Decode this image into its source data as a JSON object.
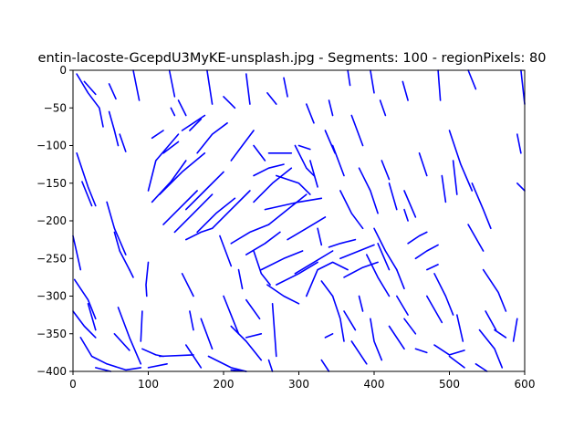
{
  "chart_data": {
    "type": "line",
    "title": "entin-lacoste-GcepdU3MyKE-unsplash.jpg - Segments: 100 - regionPixels: 80",
    "xlim": [
      0,
      600
    ],
    "ylim": [
      -400,
      0
    ],
    "xticks": [
      0,
      100,
      200,
      300,
      400,
      500,
      600
    ],
    "yticks": [
      0,
      -50,
      -100,
      -150,
      -200,
      -250,
      -300,
      -350,
      -400
    ],
    "grid": false,
    "legend": "none",
    "color": "#0000ff",
    "segments": [
      [
        [
          5,
          5
        ],
        [
          20,
          30
        ],
        [
          35,
          50
        ],
        [
          40,
          75
        ]
      ],
      [
        [
          15,
          15
        ],
        [
          30,
          32
        ]
      ],
      [
        [
          48,
          18
        ],
        [
          57,
          38
        ]
      ],
      [
        [
          48,
          55
        ],
        [
          55,
          80
        ],
        [
          60,
          100
        ]
      ],
      [
        [
          80,
          0
        ],
        [
          88,
          40
        ]
      ],
      [
        [
          62,
          85
        ],
        [
          70,
          108
        ]
      ],
      [
        [
          5,
          110
        ],
        [
          20,
          155
        ],
        [
          30,
          180
        ]
      ],
      [
        [
          12,
          148
        ],
        [
          25,
          180
        ]
      ],
      [
        [
          45,
          175
        ],
        [
          55,
          210
        ],
        [
          70,
          245
        ]
      ],
      [
        [
          55,
          215
        ],
        [
          62,
          240
        ],
        [
          75,
          265
        ]
      ],
      [
        [
          0,
          220
        ],
        [
          10,
          265
        ]
      ],
      [
        [
          2,
          278
        ],
        [
          20,
          305
        ],
        [
          30,
          330
        ]
      ],
      [
        [
          20,
          310
        ],
        [
          30,
          345
        ]
      ],
      [
        [
          0,
          320
        ],
        [
          15,
          340
        ],
        [
          30,
          355
        ]
      ],
      [
        [
          10,
          355
        ],
        [
          25,
          380
        ],
        [
          45,
          390
        ]
      ],
      [
        [
          55,
          350
        ],
        [
          75,
          372
        ]
      ],
      [
        [
          60,
          315
        ],
        [
          75,
          355
        ],
        [
          90,
          390
        ]
      ],
      [
        [
          45,
          390
        ],
        [
          70,
          398
        ],
        [
          90,
          395
        ]
      ],
      [
        [
          30,
          395
        ],
        [
          50,
          400
        ]
      ],
      [
        [
          75,
          265
        ],
        [
          80,
          275
        ]
      ],
      [
        [
          100,
          255
        ],
        [
          97,
          285
        ],
        [
          98,
          300
        ]
      ],
      [
        [
          92,
          320
        ],
        [
          90,
          360
        ]
      ],
      [
        [
          92,
          370
        ],
        [
          110,
          378
        ],
        [
          120,
          380
        ]
      ],
      [
        [
          100,
          395
        ],
        [
          125,
          390
        ]
      ],
      [
        [
          115,
          380
        ],
        [
          160,
          378
        ]
      ],
      [
        [
          150,
          365
        ],
        [
          170,
          395
        ]
      ],
      [
        [
          170,
          330
        ],
        [
          185,
          370
        ]
      ],
      [
        [
          145,
          270
        ],
        [
          160,
          300
        ]
      ],
      [
        [
          155,
          320
        ],
        [
          160,
          345
        ]
      ],
      [
        [
          200,
          300
        ],
        [
          212,
          330
        ],
        [
          220,
          350
        ]
      ],
      [
        [
          210,
          340
        ],
        [
          230,
          360
        ],
        [
          250,
          385
        ]
      ],
      [
        [
          180,
          380
        ],
        [
          210,
          395
        ],
        [
          230,
          400
        ]
      ],
      [
        [
          210,
          398
        ],
        [
          230,
          400
        ]
      ],
      [
        [
          230,
          355
        ],
        [
          250,
          350
        ]
      ],
      [
        [
          230,
          305
        ],
        [
          248,
          330
        ]
      ],
      [
        [
          265,
          310
        ],
        [
          270,
          380
        ]
      ],
      [
        [
          260,
          385
        ],
        [
          265,
          400
        ]
      ],
      [
        [
          195,
          220
        ],
        [
          210,
          260
        ]
      ],
      [
        [
          220,
          265
        ],
        [
          225,
          290
        ]
      ],
      [
        [
          240,
          240
        ],
        [
          250,
          270
        ],
        [
          262,
          285
        ]
      ],
      [
        [
          258,
          285
        ],
        [
          280,
          300
        ],
        [
          300,
          310
        ]
      ],
      [
        [
          120,
          205
        ],
        [
          140,
          185
        ],
        [
          165,
          160
        ]
      ],
      [
        [
          150,
          185
        ],
        [
          175,
          160
        ],
        [
          200,
          135
        ]
      ],
      [
        [
          105,
          175
        ],
        [
          130,
          148
        ],
        [
          150,
          120
        ]
      ],
      [
        [
          115,
          165
        ],
        [
          145,
          135
        ],
        [
          175,
          110
        ]
      ],
      [
        [
          135,
          215
        ],
        [
          160,
          190
        ],
        [
          185,
          165
        ]
      ],
      [
        [
          165,
          215
        ],
        [
          190,
          190
        ],
        [
          215,
          170
        ]
      ],
      [
        [
          185,
          210
        ],
        [
          210,
          185
        ],
        [
          235,
          160
        ]
      ],
      [
        [
          150,
          225
        ],
        [
          170,
          215
        ],
        [
          185,
          210
        ]
      ],
      [
        [
          120,
          110
        ],
        [
          140,
          95
        ]
      ],
      [
        [
          100,
          160
        ],
        [
          110,
          120
        ],
        [
          140,
          85
        ]
      ],
      [
        [
          145,
          80
        ],
        [
          160,
          70
        ],
        [
          175,
          60
        ]
      ],
      [
        [
          105,
          90
        ],
        [
          120,
          80
        ]
      ],
      [
        [
          165,
          110
        ],
        [
          185,
          85
        ],
        [
          205,
          70
        ]
      ],
      [
        [
          210,
          120
        ],
        [
          225,
          100
        ],
        [
          240,
          80
        ]
      ],
      [
        [
          240,
          140
        ],
        [
          260,
          130
        ],
        [
          280,
          125
        ]
      ],
      [
        [
          240,
          175
        ],
        [
          265,
          150
        ],
        [
          290,
          130
        ]
      ],
      [
        [
          260,
          205
        ],
        [
          285,
          185
        ],
        [
          310,
          165
        ]
      ],
      [
        [
          210,
          230
        ],
        [
          235,
          215
        ],
        [
          260,
          205
        ]
      ],
      [
        [
          230,
          245
        ],
        [
          255,
          230
        ],
        [
          275,
          215
        ]
      ],
      [
        [
          250,
          265
        ],
        [
          280,
          250
        ],
        [
          305,
          240
        ]
      ],
      [
        [
          270,
          285
        ],
        [
          300,
          270
        ],
        [
          325,
          255
        ]
      ],
      [
        [
          255,
          185
        ],
        [
          300,
          175
        ],
        [
          330,
          170
        ]
      ],
      [
        [
          285,
          225
        ],
        [
          310,
          210
        ],
        [
          335,
          195
        ]
      ],
      [
        [
          295,
          270
        ],
        [
          320,
          255
        ],
        [
          345,
          240
        ]
      ],
      [
        [
          310,
          300
        ],
        [
          325,
          265
        ],
        [
          345,
          255
        ],
        [
          365,
          265
        ]
      ],
      [
        [
          330,
          280
        ],
        [
          345,
          300
        ]
      ],
      [
        [
          355,
          250
        ],
        [
          380,
          240
        ],
        [
          400,
          232
        ]
      ],
      [
        [
          360,
          275
        ],
        [
          385,
          262
        ],
        [
          405,
          255
        ]
      ],
      [
        [
          340,
          235
        ],
        [
          355,
          230
        ],
        [
          375,
          225
        ]
      ],
      [
        [
          345,
          300
        ],
        [
          355,
          330
        ],
        [
          360,
          360
        ]
      ],
      [
        [
          335,
          355
        ],
        [
          345,
          350
        ]
      ],
      [
        [
          330,
          385
        ],
        [
          340,
          400
        ]
      ],
      [
        [
          370,
          360
        ],
        [
          390,
          390
        ]
      ],
      [
        [
          395,
          330
        ],
        [
          400,
          360
        ],
        [
          410,
          385
        ]
      ],
      [
        [
          360,
          320
        ],
        [
          375,
          345
        ]
      ],
      [
        [
          380,
          300
        ],
        [
          385,
          320
        ]
      ],
      [
        [
          355,
          160
        ],
        [
          370,
          190
        ],
        [
          385,
          210
        ]
      ],
      [
        [
          400,
          210
        ],
        [
          415,
          240
        ],
        [
          430,
          265
        ]
      ],
      [
        [
          390,
          245
        ],
        [
          405,
          275
        ],
        [
          420,
          300
        ]
      ],
      [
        [
          380,
          130
        ],
        [
          395,
          160
        ],
        [
          405,
          190
        ]
      ],
      [
        [
          405,
          230
        ],
        [
          420,
          265
        ]
      ],
      [
        [
          430,
          265
        ],
        [
          440,
          290
        ]
      ],
      [
        [
          430,
          300
        ],
        [
          445,
          325
        ]
      ],
      [
        [
          440,
          330
        ],
        [
          455,
          350
        ]
      ],
      [
        [
          420,
          340
        ],
        [
          440,
          370
        ]
      ],
      [
        [
          455,
          370
        ],
        [
          470,
          375
        ]
      ],
      [
        [
          480,
          365
        ],
        [
          500,
          378
        ],
        [
          520,
          372
        ]
      ],
      [
        [
          500,
          380
        ],
        [
          520,
          395
        ]
      ],
      [
        [
          470,
          300
        ],
        [
          490,
          335
        ]
      ],
      [
        [
          480,
          270
        ],
        [
          495,
          300
        ],
        [
          505,
          325
        ]
      ],
      [
        [
          510,
          325
        ],
        [
          518,
          360
        ]
      ],
      [
        [
          535,
          390
        ],
        [
          550,
          400
        ]
      ],
      [
        [
          540,
          345
        ],
        [
          560,
          370
        ],
        [
          570,
          395
        ]
      ],
      [
        [
          548,
          320
        ],
        [
          562,
          345
        ]
      ],
      [
        [
          545,
          265
        ],
        [
          565,
          295
        ],
        [
          575,
          320
        ]
      ],
      [
        [
          560,
          345
        ],
        [
          575,
          355
        ]
      ],
      [
        [
          585,
          360
        ],
        [
          590,
          330
        ]
      ],
      [
        [
          590,
          150
        ],
        [
          600,
          160
        ]
      ],
      [
        [
          590,
          85
        ],
        [
          595,
          110
        ]
      ],
      [
        [
          595,
          0
        ],
        [
          600,
          45
        ]
      ],
      [
        [
          525,
          0
        ],
        [
          535,
          25
        ]
      ],
      [
        [
          485,
          0
        ],
        [
          488,
          40
        ]
      ],
      [
        [
          438,
          15
        ],
        [
          445,
          40
        ]
      ],
      [
        [
          500,
          80
        ],
        [
          515,
          125
        ],
        [
          530,
          160
        ]
      ],
      [
        [
          530,
          150
        ],
        [
          545,
          185
        ],
        [
          555,
          210
        ]
      ],
      [
        [
          525,
          205
        ],
        [
          545,
          240
        ]
      ],
      [
        [
          505,
          120
        ],
        [
          510,
          165
        ]
      ],
      [
        [
          490,
          140
        ],
        [
          495,
          175
        ]
      ],
      [
        [
          460,
          110
        ],
        [
          470,
          140
        ]
      ],
      [
        [
          440,
          160
        ],
        [
          455,
          195
        ]
      ],
      [
        [
          420,
          150
        ],
        [
          430,
          185
        ]
      ],
      [
        [
          410,
          120
        ],
        [
          420,
          145
        ]
      ],
      [
        [
          345,
          100
        ],
        [
          360,
          140
        ]
      ],
      [
        [
          315,
          120
        ],
        [
          325,
          155
        ]
      ],
      [
        [
          295,
          100
        ],
        [
          310,
          130
        ],
        [
          320,
          140
        ]
      ],
      [
        [
          270,
          140
        ],
        [
          300,
          150
        ],
        [
          315,
          165
        ]
      ],
      [
        [
          340,
          40
        ],
        [
          345,
          60
        ]
      ],
      [
        [
          335,
          80
        ],
        [
          348,
          110
        ]
      ],
      [
        [
          310,
          45
        ],
        [
          320,
          70
        ]
      ],
      [
        [
          370,
          60
        ],
        [
          385,
          100
        ]
      ],
      [
        [
          395,
          0
        ],
        [
          400,
          30
        ]
      ],
      [
        [
          408,
          40
        ],
        [
          415,
          60
        ]
      ],
      [
        [
          365,
          0
        ],
        [
          368,
          20
        ]
      ],
      [
        [
          230,
          5
        ],
        [
          235,
          45
        ]
      ],
      [
        [
          258,
          30
        ],
        [
          270,
          45
        ]
      ],
      [
        [
          280,
          10
        ],
        [
          285,
          35
        ]
      ],
      [
        [
          200,
          35
        ],
        [
          215,
          50
        ]
      ],
      [
        [
          178,
          0
        ],
        [
          185,
          45
        ]
      ],
      [
        [
          128,
          0
        ],
        [
          135,
          35
        ]
      ],
      [
        [
          140,
          40
        ],
        [
          150,
          60
        ]
      ],
      [
        [
          130,
          50
        ],
        [
          135,
          60
        ]
      ],
      [
        [
          155,
          80
        ],
        [
          170,
          65
        ]
      ],
      [
        [
          240,
          100
        ],
        [
          255,
          120
        ]
      ],
      [
        [
          260,
          110
        ],
        [
          290,
          110
        ]
      ],
      [
        [
          300,
          100
        ],
        [
          315,
          105
        ]
      ],
      [
        [
          325,
          210
        ],
        [
          330,
          232
        ]
      ],
      [
        [
          440,
          185
        ],
        [
          445,
          200
        ]
      ],
      [
        [
          445,
          230
        ],
        [
          460,
          220
        ],
        [
          470,
          215
        ]
      ],
      [
        [
          455,
          250
        ],
        [
          470,
          240
        ],
        [
          485,
          232
        ]
      ],
      [
        [
          470,
          265
        ],
        [
          485,
          258
        ]
      ]
    ]
  }
}
